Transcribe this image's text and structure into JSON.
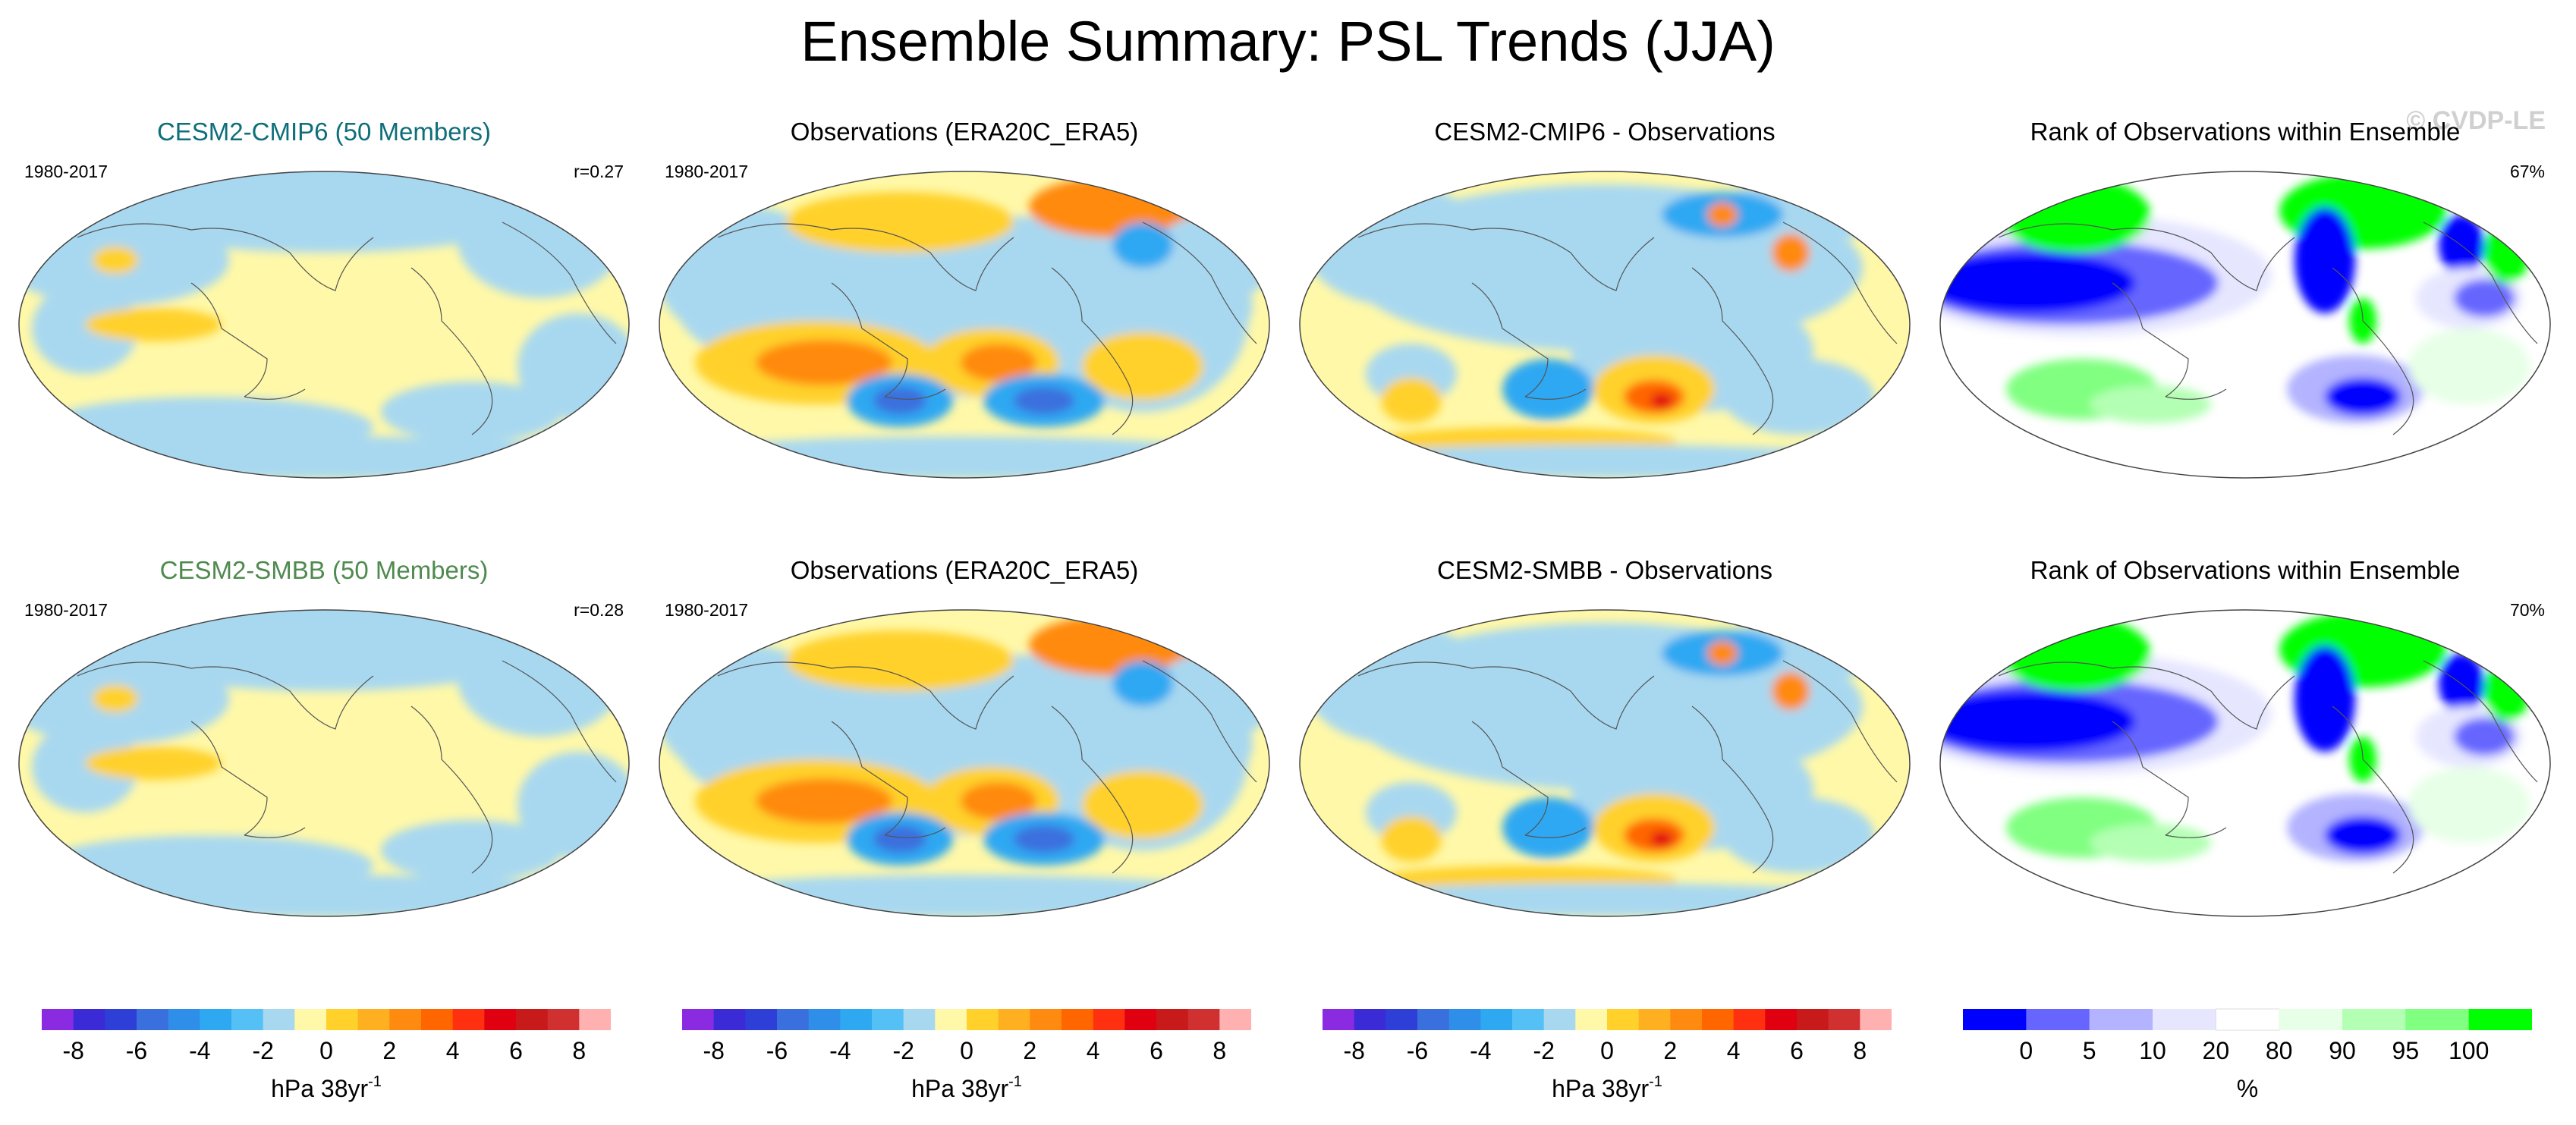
{
  "figure": {
    "title": "Ensemble Summary: PSL Trends (JJA)",
    "watermark": "© CVDP-LE"
  },
  "rows": [
    {
      "panels": [
        {
          "kind": "trend",
          "style": "model",
          "title": "CESM2-CMIP6 (50 Members)",
          "years": "1980-2017",
          "corner": "r=0.27"
        },
        {
          "kind": "trend",
          "style": "obs",
          "title": "Observations (ERA20C_ERA5)",
          "years": "1980-2017",
          "corner": ""
        },
        {
          "kind": "trend",
          "style": "diff",
          "title": "CESM2-CMIP6 - Observations",
          "years": "",
          "corner": ""
        },
        {
          "kind": "rank",
          "style": "rank",
          "title": "Rank of Observations within Ensemble",
          "years": "",
          "corner": "67%"
        }
      ]
    },
    {
      "panels": [
        {
          "kind": "trend",
          "style": "model",
          "title": "CESM2-SMBB (50 Members)",
          "years": "1980-2017",
          "corner": "r=0.28"
        },
        {
          "kind": "trend",
          "style": "obs",
          "title": "Observations (ERA20C_ERA5)",
          "years": "1980-2017",
          "corner": ""
        },
        {
          "kind": "trend",
          "style": "diff",
          "title": "CESM2-SMBB - Observations",
          "years": "",
          "corner": ""
        },
        {
          "kind": "rank",
          "style": "rank",
          "title": "Rank of Observations within Ensemble",
          "years": "",
          "corner": "70%"
        }
      ]
    }
  ],
  "colorbars": [
    {
      "kind": "trend",
      "colors": [
        "#8a2be2",
        "#3b2bd6",
        "#2e3fd8",
        "#3a6fde",
        "#2f8ee8",
        "#2fa8f2",
        "#55c0f5",
        "#a8d8f0",
        "#fff8a8",
        "#ffd12a",
        "#ffb020",
        "#ff8a10",
        "#ff6600",
        "#ff3010",
        "#e00010",
        "#c81a1a",
        "#d03030",
        "#ffb0b0"
      ],
      "tick_values": [
        -8,
        -6,
        -4,
        -2,
        0,
        2,
        4,
        6,
        8
      ],
      "tick_labels": [
        "-8",
        "-6",
        "-4",
        "-2",
        "0",
        "2",
        "4",
        "6",
        "8"
      ],
      "range": [
        -9,
        9
      ],
      "label": "hPa 38yr",
      "label_sup": "-1"
    },
    {
      "kind": "trend",
      "colors": [
        "#8a2be2",
        "#3b2bd6",
        "#2e3fd8",
        "#3a6fde",
        "#2f8ee8",
        "#2fa8f2",
        "#55c0f5",
        "#a8d8f0",
        "#fff8a8",
        "#ffd12a",
        "#ffb020",
        "#ff8a10",
        "#ff6600",
        "#ff3010",
        "#e00010",
        "#c81a1a",
        "#d03030",
        "#ffb0b0"
      ],
      "tick_values": [
        -8,
        -6,
        -4,
        -2,
        0,
        2,
        4,
        6,
        8
      ],
      "tick_labels": [
        "-8",
        "-6",
        "-4",
        "-2",
        "0",
        "2",
        "4",
        "6",
        "8"
      ],
      "range": [
        -9,
        9
      ],
      "label": "hPa 38yr",
      "label_sup": "-1"
    },
    {
      "kind": "trend",
      "colors": [
        "#8a2be2",
        "#3b2bd6",
        "#2e3fd8",
        "#3a6fde",
        "#2f8ee8",
        "#2fa8f2",
        "#55c0f5",
        "#a8d8f0",
        "#fff8a8",
        "#ffd12a",
        "#ffb020",
        "#ff8a10",
        "#ff6600",
        "#ff3010",
        "#e00010",
        "#c81a1a",
        "#d03030",
        "#ffb0b0"
      ],
      "tick_values": [
        -8,
        -6,
        -4,
        -2,
        0,
        2,
        4,
        6,
        8
      ],
      "tick_labels": [
        "-8",
        "-6",
        "-4",
        "-2",
        "0",
        "2",
        "4",
        "6",
        "8"
      ],
      "range": [
        -9,
        9
      ],
      "label": "hPa 38yr",
      "label_sup": "-1"
    },
    {
      "kind": "rank",
      "colors": [
        "#0000ff",
        "#6666ff",
        "#b3b3ff",
        "#e6e6ff",
        "#ffffff",
        "#e6ffe6",
        "#b3ffb3",
        "#80ff80",
        "#00ff00"
      ],
      "bounds": [
        -3,
        0,
        5,
        10,
        20,
        80,
        90,
        95,
        100,
        103
      ],
      "tick_labels": [
        "0",
        "5",
        "10",
        "20",
        "80",
        "90",
        "95",
        "100"
      ],
      "label": "%"
    }
  ]
}
